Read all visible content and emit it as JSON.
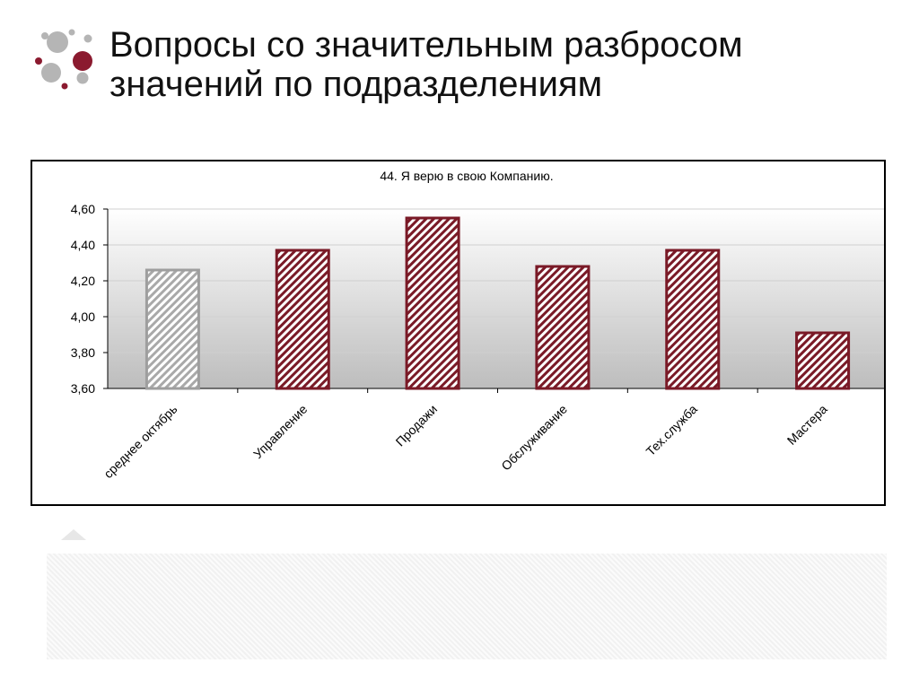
{
  "slide": {
    "title_line1": "Вопросы со значительным разбросом",
    "title_line2": "значений по подразделениям"
  },
  "colors": {
    "accent": "#8b1a2f",
    "bar_dark": "#7a1a27",
    "bar_light": "#9e9e9e",
    "logo_grey": "#b5b5b5"
  },
  "logo_icon": "dots-logo-icon",
  "chart_data": {
    "type": "bar",
    "title": "44. Я верю в свою Компанию.",
    "categories": [
      "среднее октябрь",
      "Управление",
      "Продажи",
      "Обслуживание",
      "Тех.служба",
      "Мастера"
    ],
    "values": [
      4.26,
      4.37,
      4.55,
      4.28,
      4.37,
      3.91
    ],
    "ylim": [
      3.6,
      4.6
    ],
    "yticks": [
      "3,60",
      "3,80",
      "4,00",
      "4,20",
      "4,40",
      "4,60"
    ],
    "grid": true,
    "legend": "none"
  }
}
